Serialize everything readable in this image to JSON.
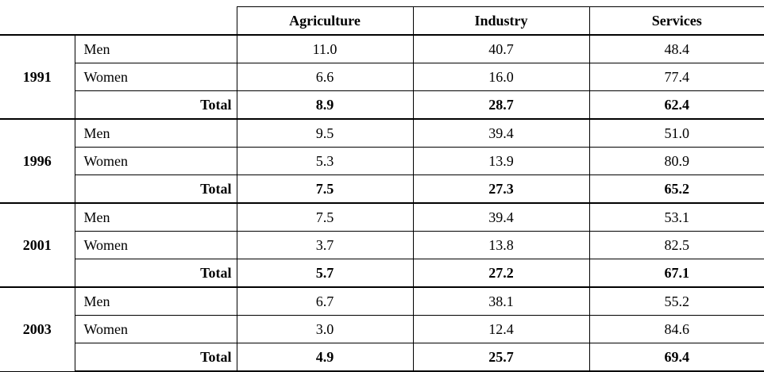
{
  "table": {
    "headers": [
      "",
      "",
      "Agriculture",
      "Industry",
      "Services"
    ],
    "groups": [
      {
        "year": "1991",
        "rows": [
          {
            "label": "Men",
            "values": [
              "11.0",
              "40.7",
              "48.4"
            ]
          },
          {
            "label": "Women",
            "values": [
              "6.6",
              "16.0",
              "77.4"
            ]
          },
          {
            "label": "Total",
            "values": [
              "8.9",
              "28.7",
              "62.4"
            ]
          }
        ]
      },
      {
        "year": "1996",
        "rows": [
          {
            "label": "Men",
            "values": [
              "9.5",
              "39.4",
              "51.0"
            ]
          },
          {
            "label": "Women",
            "values": [
              "5.3",
              "13.9",
              "80.9"
            ]
          },
          {
            "label": "Total",
            "values": [
              "7.5",
              "27.3",
              "65.2"
            ]
          }
        ]
      },
      {
        "year": "2001",
        "rows": [
          {
            "label": "Men",
            "values": [
              "7.5",
              "39.4",
              "53.1"
            ]
          },
          {
            "label": "Women",
            "values": [
              "3.7",
              "13.8",
              "82.5"
            ]
          },
          {
            "label": "Total",
            "values": [
              "5.7",
              "27.2",
              "67.1"
            ]
          }
        ]
      },
      {
        "year": "2003",
        "rows": [
          {
            "label": "Men",
            "values": [
              "6.7",
              "38.1",
              "55.2"
            ]
          },
          {
            "label": "Women",
            "values": [
              "3.0",
              "12.4",
              "84.6"
            ]
          },
          {
            "label": "Total",
            "values": [
              "4.9",
              "25.7",
              "69.4"
            ]
          }
        ]
      }
    ]
  }
}
